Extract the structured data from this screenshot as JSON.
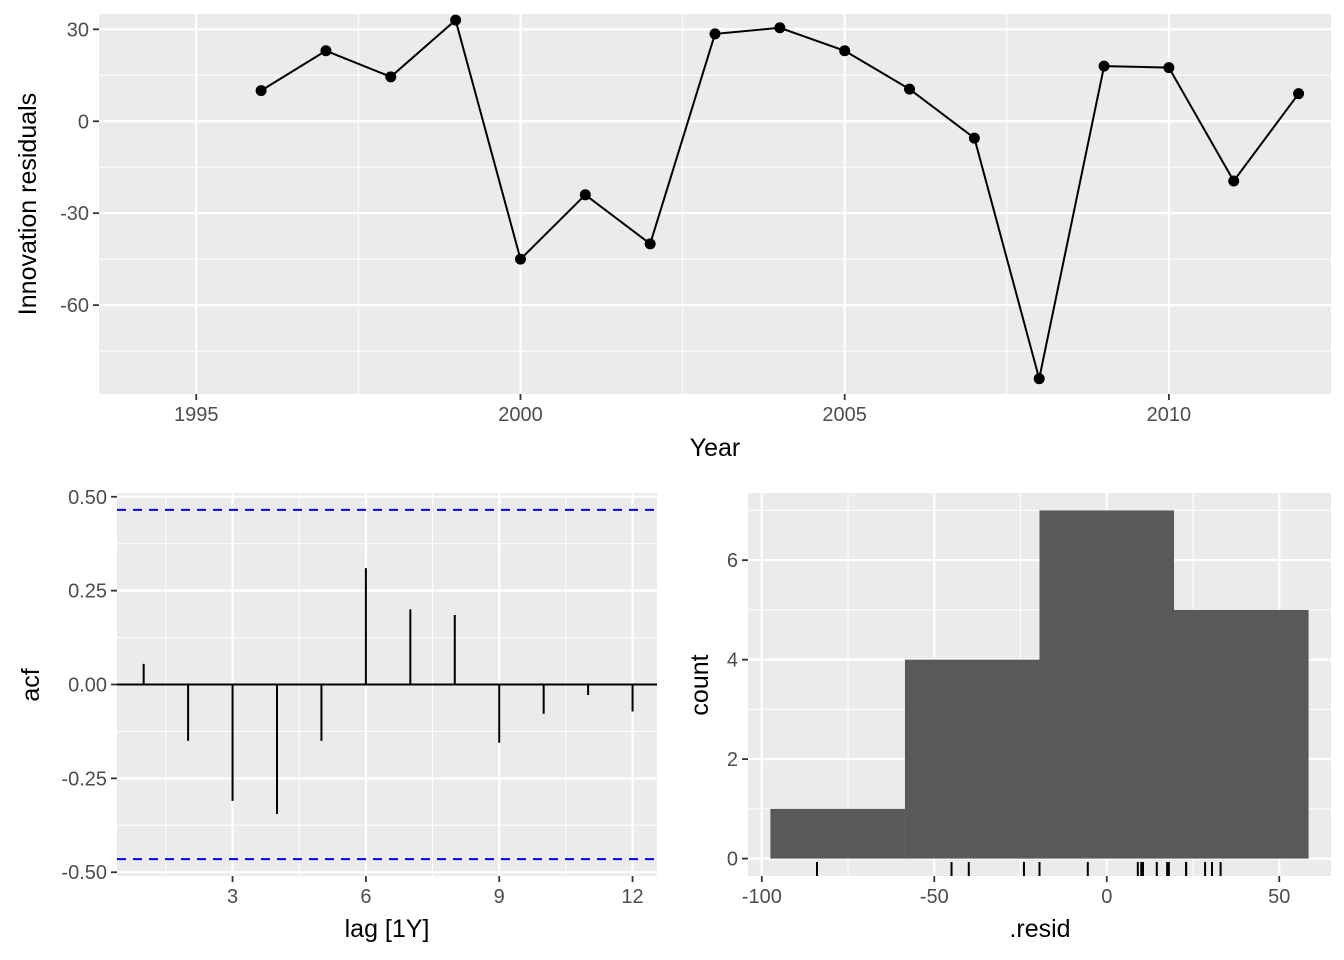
{
  "chart_data": [
    {
      "type": "line",
      "xlabel": "Year",
      "ylabel": "Innovation residuals",
      "xlim": [
        1993.5,
        2012.5
      ],
      "ylim": [
        -89,
        35
      ],
      "x_ticks": [
        1995,
        2000,
        2005,
        2010
      ],
      "y_ticks": [
        -60,
        -30,
        0,
        30
      ],
      "x_tick_labels": [
        "1995",
        "2000",
        "2005",
        "2010"
      ],
      "y_tick_labels": [
        "-60",
        "-30",
        "0",
        "30"
      ],
      "grid": true,
      "x": [
        1996,
        1997,
        1998,
        1999,
        2000,
        2001,
        2002,
        2003,
        2004,
        2005,
        2006,
        2007,
        2008,
        2009,
        2010,
        2011,
        2012
      ],
      "y": [
        10,
        23,
        14.5,
        33,
        -45,
        -24,
        -40,
        28.5,
        30.5,
        23,
        10.5,
        -5.5,
        -84,
        18,
        17.5,
        -19.5,
        9
      ]
    },
    {
      "type": "bar",
      "xlabel": "lag [1Y]",
      "ylabel": "acf",
      "xlim": [
        0.4,
        12.55
      ],
      "ylim": [
        -0.51,
        0.51
      ],
      "x_ticks": [
        3,
        6,
        9,
        12
      ],
      "y_ticks": [
        -0.5,
        -0.25,
        0,
        0.25,
        0.5
      ],
      "x_tick_labels": [
        "3",
        "6",
        "9",
        "12"
      ],
      "y_tick_labels": [
        "-0.50",
        "-0.25",
        "0.00",
        "0.25",
        "0.50"
      ],
      "grid": true,
      "lags": [
        1,
        2,
        3,
        4,
        5,
        6,
        7,
        8,
        9,
        10,
        11,
        12
      ],
      "values": [
        0.055,
        -0.15,
        -0.31,
        -0.345,
        -0.15,
        0.31,
        0.2,
        0.185,
        -0.155,
        -0.078,
        -0.028,
        -0.072
      ],
      "confidence_bounds": [
        -0.465,
        0.465
      ],
      "confidence_color": "#0000ff"
    },
    {
      "type": "histogram",
      "xlabel": ".resid",
      "ylabel": "count",
      "xlim": [
        -104,
        65
      ],
      "ylim": [
        -0.35,
        7.35
      ],
      "x_ticks": [
        -100,
        -50,
        0,
        50
      ],
      "y_ticks": [
        0,
        2,
        4,
        6
      ],
      "x_tick_labels": [
        "-100",
        "-50",
        "0",
        "50"
      ],
      "y_tick_labels": [
        "0",
        "2",
        "4",
        "6"
      ],
      "grid": true,
      "bins": [
        {
          "x0": -97.5,
          "x1": -58.5,
          "count": 1
        },
        {
          "x0": -58.5,
          "x1": -19.5,
          "count": 4
        },
        {
          "x0": -19.5,
          "x1": 19.5,
          "count": 7
        },
        {
          "x0": 19.5,
          "x1": 58.5,
          "count": 5
        }
      ],
      "bar_color": "#595959",
      "rug": [
        -84,
        -45,
        -40,
        -24,
        -19.5,
        -5.5,
        9,
        10,
        10.5,
        14.5,
        17.5,
        18,
        23,
        23,
        28.5,
        30.5,
        33
      ]
    }
  ],
  "colors": {
    "panel_bg": "#ebebeb",
    "grid": "#ffffff",
    "line": "#000000",
    "tick_text": "#4d4d4d"
  }
}
